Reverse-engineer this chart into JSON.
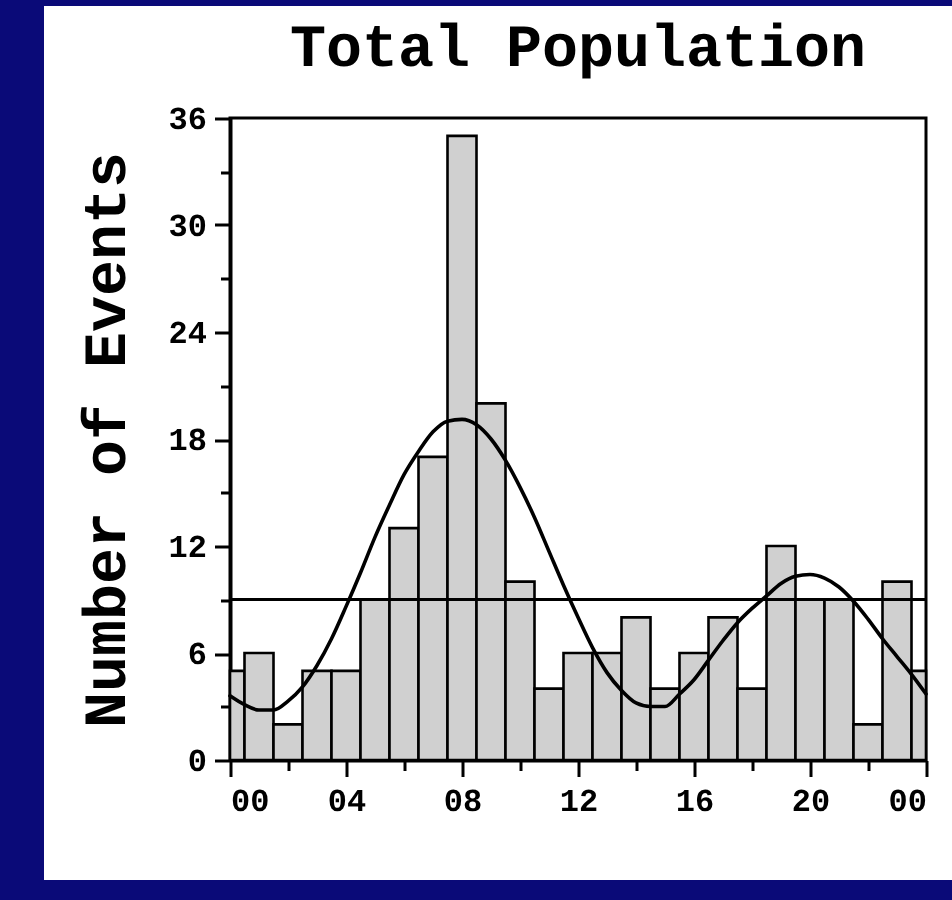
{
  "chart_data": {
    "type": "histogram",
    "title": "Total Population",
    "ylabel": "Number of Events",
    "bins": [
      0,
      0.5,
      1.5,
      2.5,
      3.5,
      4.5,
      5.5,
      6.5,
      7.5,
      8.5,
      9.5,
      10.5,
      11.5,
      12.5,
      13.5,
      14.5,
      15.5,
      16.5,
      17.5,
      18.5,
      19.5,
      20.5,
      21.5,
      22.5,
      23.5,
      24
    ],
    "series": [
      {
        "color": "#d0d0d0",
        "values": [
          5,
          6,
          2,
          5,
          5,
          9,
          13,
          17,
          35,
          20,
          10,
          4,
          6,
          6,
          8,
          4,
          6,
          8,
          4,
          12,
          9,
          9,
          2,
          10,
          5
        ]
      },
      {
        "type": "line",
        "color": "#000000",
        "x": [
          0,
          0.5,
          1,
          1.5,
          2,
          2.5,
          3,
          3.5,
          4,
          4.5,
          5,
          5.5,
          6,
          6.5,
          7,
          7.5,
          8,
          8.5,
          9,
          9.5,
          10,
          10.5,
          11,
          11.5,
          12,
          12.5,
          13,
          13.5,
          14,
          14.5,
          15,
          15.5,
          16,
          16.5,
          17,
          17.5,
          18,
          18.5,
          19,
          19.5,
          20,
          20.5,
          21,
          21.5,
          22,
          22.5,
          23,
          23.5,
          24
        ],
        "values": [
          3.6,
          3.1,
          2.8,
          2.8,
          3.3,
          4.1,
          5.3,
          6.8,
          8.6,
          10.5,
          12.5,
          14.3,
          16.0,
          17.3,
          18.4,
          19.0,
          19.1,
          18.8,
          18.0,
          16.8,
          15.3,
          13.6,
          11.7,
          9.8,
          8.0,
          6.3,
          4.9,
          3.9,
          3.2,
          3.0,
          3.0,
          3.7,
          4.5,
          5.6,
          6.7,
          7.7,
          8.5,
          9.2,
          9.9,
          10.3,
          10.4,
          10.2,
          9.7,
          8.9,
          7.9,
          6.8,
          5.8,
          4.8,
          3.7
        ]
      }
    ],
    "xlim": [
      0,
      24
    ],
    "ylim": [
      0,
      36
    ],
    "xticks": [
      {
        "value": 0,
        "label": "00"
      },
      {
        "value": 2,
        "label": null
      },
      {
        "value": 4,
        "label": "04"
      },
      {
        "value": 6,
        "label": null
      },
      {
        "value": 8,
        "label": "08"
      },
      {
        "value": 10,
        "label": null
      },
      {
        "value": 12,
        "label": "12"
      },
      {
        "value": 14,
        "label": null
      },
      {
        "value": 16,
        "label": "16"
      },
      {
        "value": 18,
        "label": null
      },
      {
        "value": 20,
        "label": "20"
      },
      {
        "value": 22,
        "label": null
      },
      {
        "value": 24,
        "label": "00"
      }
    ],
    "yticks": [
      0,
      {
        "value": 3,
        "label": null
      },
      6,
      {
        "value": 9,
        "label": null
      },
      12,
      {
        "value": 15,
        "label": null
      },
      18,
      {
        "value": 21,
        "label": null
      },
      24,
      {
        "value": 27,
        "label": null
      },
      30,
      {
        "value": 33,
        "label": null
      },
      36
    ],
    "ref_lines": [
      {
        "axis": "y",
        "value": 9,
        "color": "#000000"
      }
    ]
  }
}
